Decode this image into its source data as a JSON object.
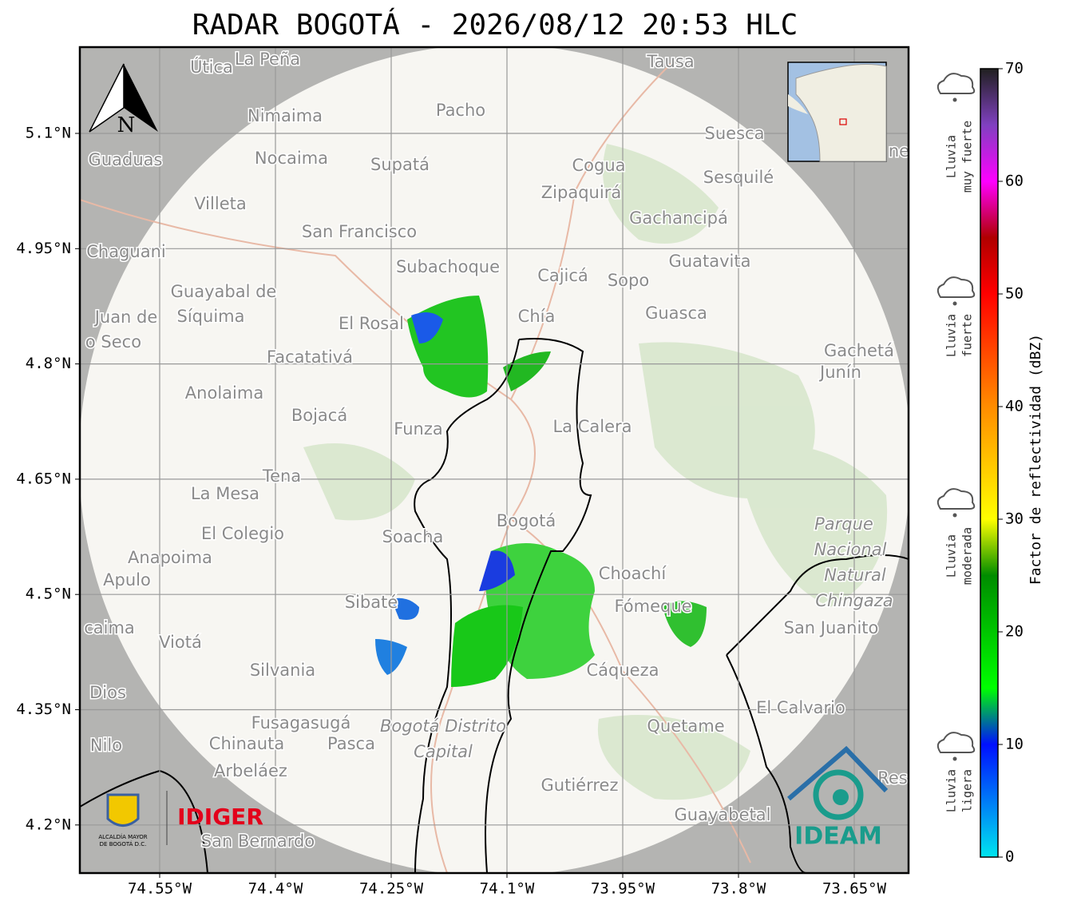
{
  "title": "RADAR BOGOTÁ - 2026/08/12 20:53 HLC",
  "axes": {
    "lat_ticks": [
      "5.1°N",
      "4.95°N",
      "4.8°N",
      "4.65°N",
      "4.5°N",
      "4.35°N",
      "4.2°N"
    ],
    "lon_ticks": [
      "74.55°W",
      "74.4°W",
      "74.25°W",
      "74.1°W",
      "73.95°W",
      "73.8°W",
      "73.65°W"
    ]
  },
  "north_arrow": "N",
  "places": [
    "Útica",
    "La Peña",
    "Tausa",
    "Pacho",
    "Nimaima",
    "Guaduas",
    "Nocaima",
    "Supatá",
    "Cogua",
    "Suesca",
    "Sesquilé",
    "Zipaquirá",
    "Villeta",
    "Gachancipá",
    "San Francisco",
    "Chaguani",
    "Subachoque",
    "Guatavita",
    "Cajicá",
    "Sopo",
    "Guayabal de",
    "Síquima",
    "Juan de",
    "o Seco",
    "El Rosal",
    "Chía",
    "Guasca",
    "Facatativá",
    "Gachetá",
    "Junín",
    "Anolaima",
    "Bojacá",
    "Funza",
    "La Calera",
    "Tena",
    "La Mesa",
    "Bogotá",
    "Soacha",
    "El Colegio",
    "Parque",
    "Nacional",
    "Natural",
    "Chingaza",
    "Anapoima",
    "Apulo",
    "Choachí",
    "Sibaté",
    "Fómeque",
    "San Juanito",
    "caima",
    "Viotá",
    "Silvania",
    "Cáqueza",
    "Dios",
    "El Calvario",
    "Fusagasugá",
    "Quetame",
    "Bogotá Distrito",
    "Capital",
    "Nilo",
    "Chinauta",
    "Pasca",
    "Arbeláez",
    "Gutiérrez",
    "Guayabetal",
    "San Bernardo",
    "Res",
    "ne"
  ],
  "logos": {
    "idiger": "IDIGER",
    "ideam": "IDEAM",
    "alcaldia": [
      "ALCALDÍA MAYOR",
      "DE BOGOTÁ D.C."
    ]
  },
  "colorbar": {
    "label": "Factor de reflectividad (dBZ)",
    "lim": [
      0,
      70
    ],
    "ticks": [
      0,
      10,
      20,
      30,
      40,
      50,
      60,
      70
    ],
    "colors": [
      {
        "value": 0,
        "color": "#00e5ee"
      },
      {
        "value": 10,
        "color": "#0010ff"
      },
      {
        "value": 15,
        "color": "#00ff00"
      },
      {
        "value": 25,
        "color": "#008c00"
      },
      {
        "value": 30,
        "color": "#ffff00"
      },
      {
        "value": 40,
        "color": "#ff8c00"
      },
      {
        "value": 50,
        "color": "#ff0000"
      },
      {
        "value": 55,
        "color": "#b00000"
      },
      {
        "value": 60,
        "color": "#ff00ff"
      },
      {
        "value": 65,
        "color": "#8040c0"
      },
      {
        "value": 70,
        "color": "#202020"
      }
    ]
  },
  "intensity_legend": [
    [
      "Lluvia",
      "muy fuerte"
    ],
    [
      "Lluvia",
      "fuerte"
    ],
    [
      "Lluvia",
      "moderada"
    ],
    [
      "Lluvia",
      "ligera"
    ]
  ]
}
